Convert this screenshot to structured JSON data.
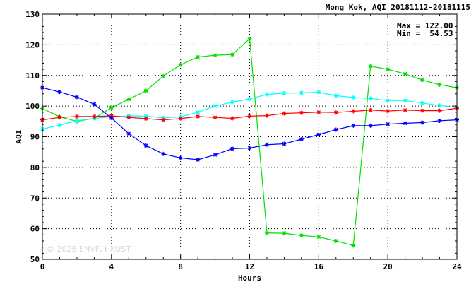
{
  "chart_data": {
    "type": "line",
    "title": "Mong Kok, AQI 20181112-20181115",
    "xlabel": "Hours",
    "ylabel": "AQI",
    "xlim": [
      0,
      24
    ],
    "ylim": [
      50,
      130
    ],
    "xticks": [
      0,
      4,
      8,
      12,
      16,
      20,
      24
    ],
    "yticks": [
      50,
      60,
      70,
      80,
      90,
      100,
      110,
      120,
      130
    ],
    "grid": true,
    "stats": {
      "max": "Max = 122.00",
      "min": "Min =  54.53"
    },
    "watermark": "© 2026  ENVF, HKUST",
    "x": [
      0,
      1,
      2,
      3,
      4,
      5,
      6,
      7,
      8,
      9,
      10,
      11,
      12,
      13,
      14,
      15,
      16,
      17,
      18,
      19,
      20,
      21,
      22,
      23,
      24
    ],
    "series": [
      {
        "color": "#00e000",
        "values": [
          99.2,
          96.5,
          95.0,
          96.0,
          99.5,
          102.2,
          105.0,
          109.8,
          113.5,
          116.0,
          116.6,
          116.8,
          122.0,
          58.6,
          58.5,
          57.8,
          57.3,
          56.0,
          54.53,
          113.0,
          112.0,
          110.5,
          108.5,
          107.0,
          106.0
        ]
      },
      {
        "color": "#00ffff",
        "values": [
          92.5,
          93.8,
          95.2,
          96.0,
          96.5,
          96.8,
          96.7,
          96.2,
          96.5,
          98.0,
          100.0,
          101.3,
          102.3,
          103.8,
          104.2,
          104.3,
          104.5,
          103.4,
          102.8,
          102.5,
          101.8,
          101.8,
          101.0,
          100.2,
          99.5
        ]
      },
      {
        "color": "#ff0000",
        "values": [
          95.5,
          96.3,
          96.6,
          96.6,
          96.8,
          96.3,
          95.9,
          95.5,
          95.9,
          96.6,
          96.3,
          96.0,
          96.7,
          96.9,
          97.6,
          97.8,
          98.0,
          97.9,
          98.3,
          98.7,
          98.4,
          98.7,
          98.5,
          98.5,
          99.3
        ]
      },
      {
        "color": "#0000ff",
        "values": [
          106.0,
          104.6,
          102.9,
          100.6,
          96.1,
          91.0,
          87.1,
          84.4,
          83.1,
          82.5,
          84.1,
          86.1,
          86.3,
          87.4,
          87.7,
          89.2,
          90.7,
          92.3,
          93.6,
          93.6,
          94.1,
          94.4,
          94.6,
          95.2,
          95.5
        ]
      }
    ]
  }
}
